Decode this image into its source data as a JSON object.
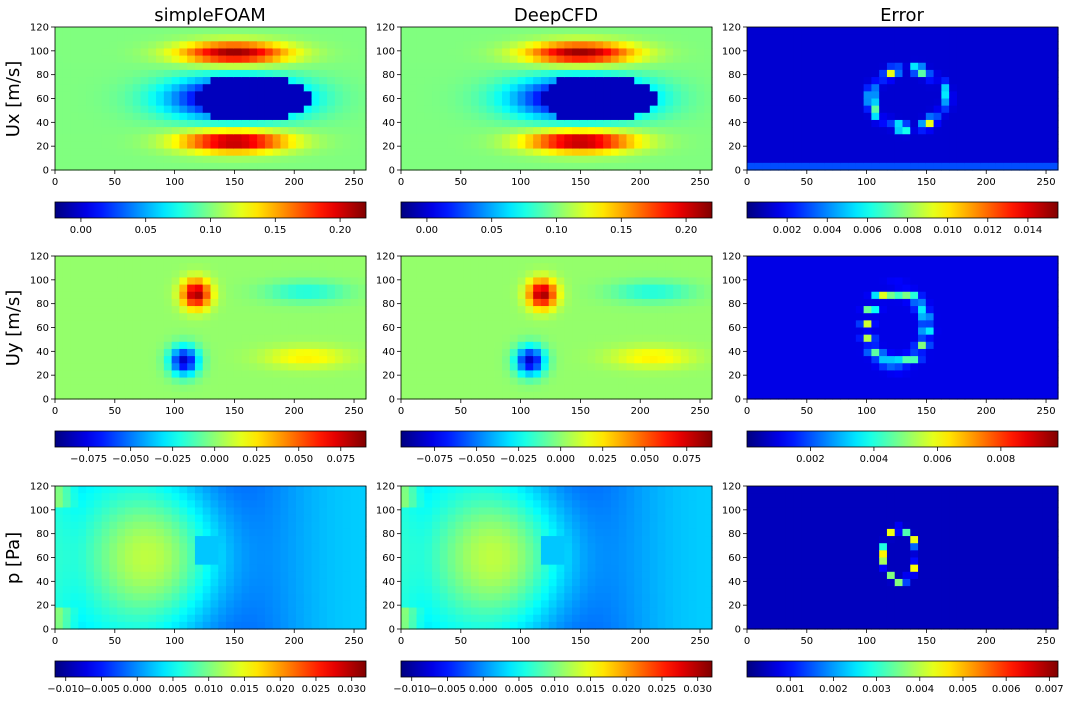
{
  "column_titles": [
    "simpleFOAM",
    "DeepCFD",
    "Error"
  ],
  "row_labels": [
    "Ux [m/s]",
    "Uy [m/s]",
    "p [Pa]"
  ],
  "chart_data": [
    {
      "type": "heatmap",
      "row": "Ux [m/s]",
      "column": "simpleFOAM",
      "colormap": "jet",
      "xlim": [
        0,
        260
      ],
      "ylim": [
        0,
        120
      ],
      "xticks": [
        0,
        50,
        100,
        150,
        200,
        250
      ],
      "yticks": [
        0,
        20,
        40,
        60,
        80,
        100,
        120
      ],
      "colorbar": {
        "range": [
          -0.02,
          0.22
        ],
        "ticks": [
          0.0,
          0.05,
          0.1,
          0.15,
          0.2
        ],
        "tick_labels": [
          "0.00",
          "0.05",
          "0.10",
          "0.15",
          "0.20"
        ]
      },
      "features": {
        "obstacle_center": [
          165,
          60
        ],
        "field": "low-velocity wake behind obstacle, high-velocity jets above and below (~y 20 and ~y 100)"
      }
    },
    {
      "type": "heatmap",
      "row": "Ux [m/s]",
      "column": "DeepCFD",
      "colormap": "jet",
      "xlim": [
        0,
        260
      ],
      "ylim": [
        0,
        120
      ],
      "xticks": [
        0,
        50,
        100,
        150,
        200,
        250
      ],
      "yticks": [
        0,
        20,
        40,
        60,
        80,
        100,
        120
      ],
      "colorbar": {
        "range": [
          -0.02,
          0.22
        ],
        "ticks": [
          0.0,
          0.05,
          0.1,
          0.15,
          0.2
        ],
        "tick_labels": [
          "0.00",
          "0.05",
          "0.10",
          "0.15",
          "0.20"
        ]
      },
      "features": {
        "obstacle_center": [
          165,
          60
        ],
        "field": "nearly identical to simpleFOAM prediction"
      }
    },
    {
      "type": "heatmap",
      "row": "Ux [m/s]",
      "column": "Error",
      "colormap": "jet",
      "xlim": [
        0,
        260
      ],
      "ylim": [
        0,
        120
      ],
      "xticks": [
        0,
        50,
        100,
        150,
        200,
        250
      ],
      "yticks": [
        0,
        20,
        40,
        60,
        80,
        100,
        120
      ],
      "colorbar": {
        "range": [
          0,
          0.0155
        ],
        "ticks": [
          0.002,
          0.004,
          0.006,
          0.008,
          0.01,
          0.012,
          0.014
        ],
        "tick_labels": [
          "0.002",
          "0.004",
          "0.006",
          "0.008",
          "0.010",
          "0.012",
          "0.014"
        ]
      },
      "features": {
        "obstacle_center": [
          135,
          60
        ],
        "field": "mostly low error with peaks along obstacle edges"
      }
    },
    {
      "type": "heatmap",
      "row": "Uy [m/s]",
      "column": "simpleFOAM",
      "colormap": "jet",
      "xlim": [
        0,
        260
      ],
      "ylim": [
        0,
        120
      ],
      "xticks": [
        0,
        50,
        100,
        150,
        200,
        250
      ],
      "yticks": [
        0,
        20,
        40,
        60,
        80,
        100,
        120
      ],
      "colorbar": {
        "range": [
          -0.095,
          0.09
        ],
        "ticks": [
          -0.075,
          -0.05,
          -0.025,
          0.0,
          0.025,
          0.05,
          0.075
        ],
        "tick_labels": [
          "−0.075",
          "−0.050",
          "−0.025",
          "0.000",
          "0.025",
          "0.050",
          "0.075"
        ]
      },
      "features": {
        "positive_lobe": [
          118,
          88
        ],
        "negative_lobe": [
          108,
          32
        ]
      }
    },
    {
      "type": "heatmap",
      "row": "Uy [m/s]",
      "column": "DeepCFD",
      "colormap": "jet",
      "xlim": [
        0,
        260
      ],
      "ylim": [
        0,
        120
      ],
      "xticks": [
        0,
        50,
        100,
        150,
        200,
        250
      ],
      "yticks": [
        0,
        20,
        40,
        60,
        80,
        100,
        120
      ],
      "colorbar": {
        "range": [
          -0.095,
          0.09
        ],
        "ticks": [
          -0.075,
          -0.05,
          -0.025,
          0.0,
          0.025,
          0.05,
          0.075
        ],
        "tick_labels": [
          "−0.075",
          "−0.050",
          "−0.025",
          "0.000",
          "0.025",
          "0.050",
          "0.075"
        ]
      },
      "features": {
        "positive_lobe": [
          118,
          88
        ],
        "negative_lobe": [
          108,
          32
        ]
      }
    },
    {
      "type": "heatmap",
      "row": "Uy [m/s]",
      "column": "Error",
      "colormap": "jet",
      "xlim": [
        0,
        260
      ],
      "ylim": [
        0,
        120
      ],
      "xticks": [
        0,
        50,
        100,
        150,
        200,
        250
      ],
      "yticks": [
        0,
        20,
        40,
        60,
        80,
        100,
        120
      ],
      "colorbar": {
        "range": [
          0,
          0.0098
        ],
        "ticks": [
          0.002,
          0.004,
          0.006,
          0.008
        ],
        "tick_labels": [
          "0.002",
          "0.004",
          "0.006",
          "0.008"
        ]
      },
      "features": {
        "obstacle_center": [
          125,
          60
        ],
        "field": "errors concentrated on obstacle boundary"
      }
    },
    {
      "type": "heatmap",
      "row": "p [Pa]",
      "column": "simpleFOAM",
      "colormap": "jet",
      "xlim": [
        0,
        260
      ],
      "ylim": [
        0,
        120
      ],
      "xticks": [
        0,
        50,
        100,
        150,
        200,
        250
      ],
      "yticks": [
        0,
        20,
        40,
        60,
        80,
        100,
        120
      ],
      "colorbar": {
        "range": [
          -0.0115,
          0.032
        ],
        "ticks": [
          -0.01,
          -0.005,
          0.0,
          0.005,
          0.01,
          0.015,
          0.02,
          0.025,
          0.03
        ],
        "tick_labels": [
          "−0.010",
          "−0.005",
          "0.000",
          "0.005",
          "0.010",
          "0.015",
          "0.020",
          "0.025",
          "0.030"
        ]
      },
      "features": {
        "obstacle_center": [
          127,
          65
        ],
        "field": "high pressure upstream, low pressure downstream"
      }
    },
    {
      "type": "heatmap",
      "row": "p [Pa]",
      "column": "DeepCFD",
      "colormap": "jet",
      "xlim": [
        0,
        260
      ],
      "ylim": [
        0,
        120
      ],
      "xticks": [
        0,
        50,
        100,
        150,
        200,
        250
      ],
      "yticks": [
        0,
        20,
        40,
        60,
        80,
        100,
        120
      ],
      "colorbar": {
        "range": [
          -0.0115,
          0.032
        ],
        "ticks": [
          -0.01,
          -0.005,
          0.0,
          0.005,
          0.01,
          0.015,
          0.02,
          0.025,
          0.03
        ],
        "tick_labels": [
          "−0.010",
          "−0.005",
          "0.000",
          "0.005",
          "0.010",
          "0.015",
          "0.020",
          "0.025",
          "0.030"
        ]
      },
      "features": {
        "obstacle_center": [
          127,
          65
        ],
        "field": "nearly identical to simpleFOAM prediction"
      }
    },
    {
      "type": "heatmap",
      "row": "p [Pa]",
      "column": "Error",
      "colormap": "jet",
      "xlim": [
        0,
        260
      ],
      "ylim": [
        0,
        120
      ],
      "xticks": [
        0,
        50,
        100,
        150,
        200,
        250
      ],
      "yticks": [
        0,
        20,
        40,
        60,
        80,
        100,
        120
      ],
      "colorbar": {
        "range": [
          0,
          0.0072
        ],
        "ticks": [
          0.001,
          0.002,
          0.003,
          0.004,
          0.005,
          0.006,
          0.007
        ],
        "tick_labels": [
          "0.001",
          "0.002",
          "0.003",
          "0.004",
          "0.005",
          "0.006",
          "0.007"
        ]
      },
      "features": {
        "obstacle_center": [
          128,
          62
        ],
        "field": "thin ring of error around obstacle boundary"
      }
    }
  ]
}
